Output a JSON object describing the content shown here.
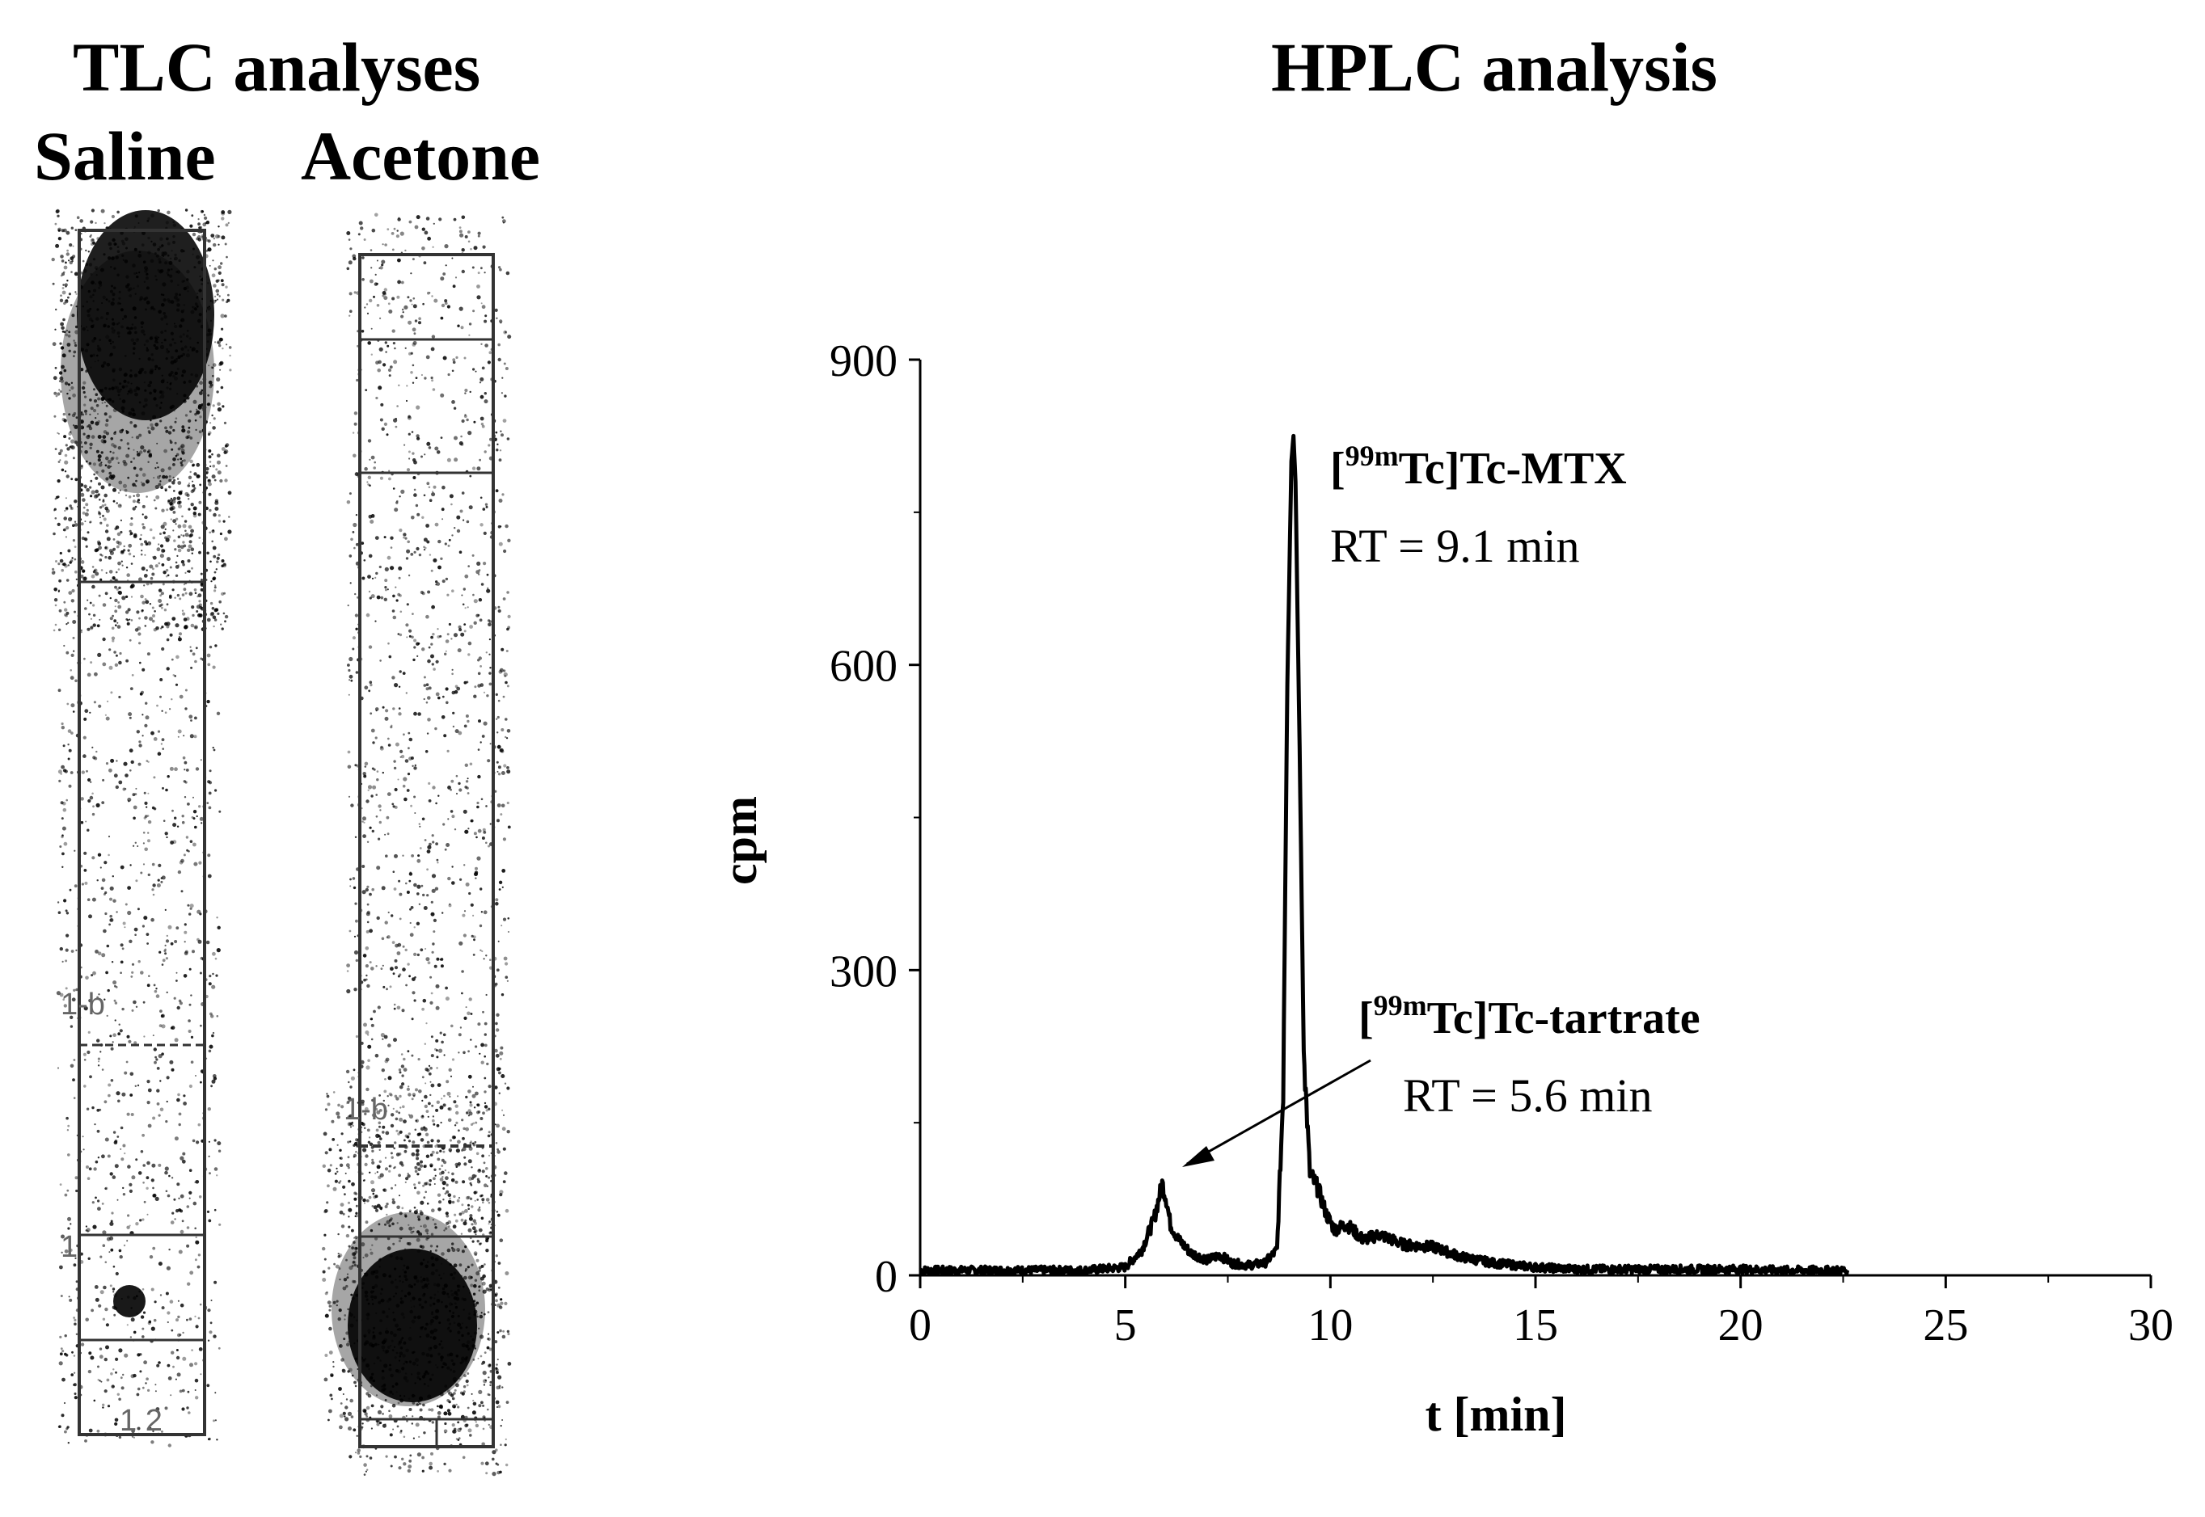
{
  "tlc": {
    "title": "TLC analyses",
    "saline_label": "Saline",
    "acetone_label": "Acetone",
    "saline_marks": [
      "1-b",
      "1",
      "1 2"
    ],
    "acetone_marks": [
      "1-b"
    ]
  },
  "hplc": {
    "title": "HPLC analysis"
  },
  "colors": {
    "trace": "#000000",
    "background": "#ffffff"
  },
  "chart_data": {
    "type": "line",
    "title": "HPLC analysis",
    "xlabel": "t [min]",
    "ylabel": "cpm",
    "xlim": [
      0,
      30
    ],
    "ylim": [
      0,
      900
    ],
    "xticks": [
      0,
      5,
      10,
      15,
      20,
      25,
      30
    ],
    "yticks": [
      0,
      300,
      600,
      900
    ],
    "grid": false,
    "series": [
      {
        "x": [
          0,
          1,
          2,
          3,
          4,
          5,
          5.4,
          5.7,
          5.9,
          6.0,
          6.1,
          6.3,
          6.6,
          7.0,
          7.3,
          7.6,
          8.0,
          8.4,
          8.7,
          8.85,
          8.95,
          9.05,
          9.1,
          9.15,
          9.25,
          9.35,
          9.5,
          9.7,
          9.9,
          10.1,
          10.4,
          10.8,
          11.2,
          11.8,
          12.5,
          13.2,
          14.0,
          15.0,
          16.0,
          17.0,
          18.0,
          19.0,
          20.0,
          21.0,
          22.0,
          22.6
        ],
        "y": [
          5,
          5,
          5,
          5,
          5,
          8,
          25,
          55,
          90,
          75,
          50,
          35,
          22,
          15,
          20,
          12,
          10,
          12,
          25,
          180,
          580,
          800,
          825,
          780,
          520,
          220,
          100,
          85,
          60,
          45,
          50,
          35,
          40,
          30,
          28,
          18,
          12,
          8,
          6,
          6,
          6,
          6,
          6,
          5,
          5,
          5
        ]
      }
    ],
    "annotations": [
      {
        "label": "[99mTc]Tc-MTX",
        "retention": "RT = 9.1 min"
      },
      {
        "label": "[99mTc]Tc-tartrate",
        "retention": "RT = 5.6 min",
        "points_to": [
          6.0,
          90
        ]
      }
    ]
  }
}
